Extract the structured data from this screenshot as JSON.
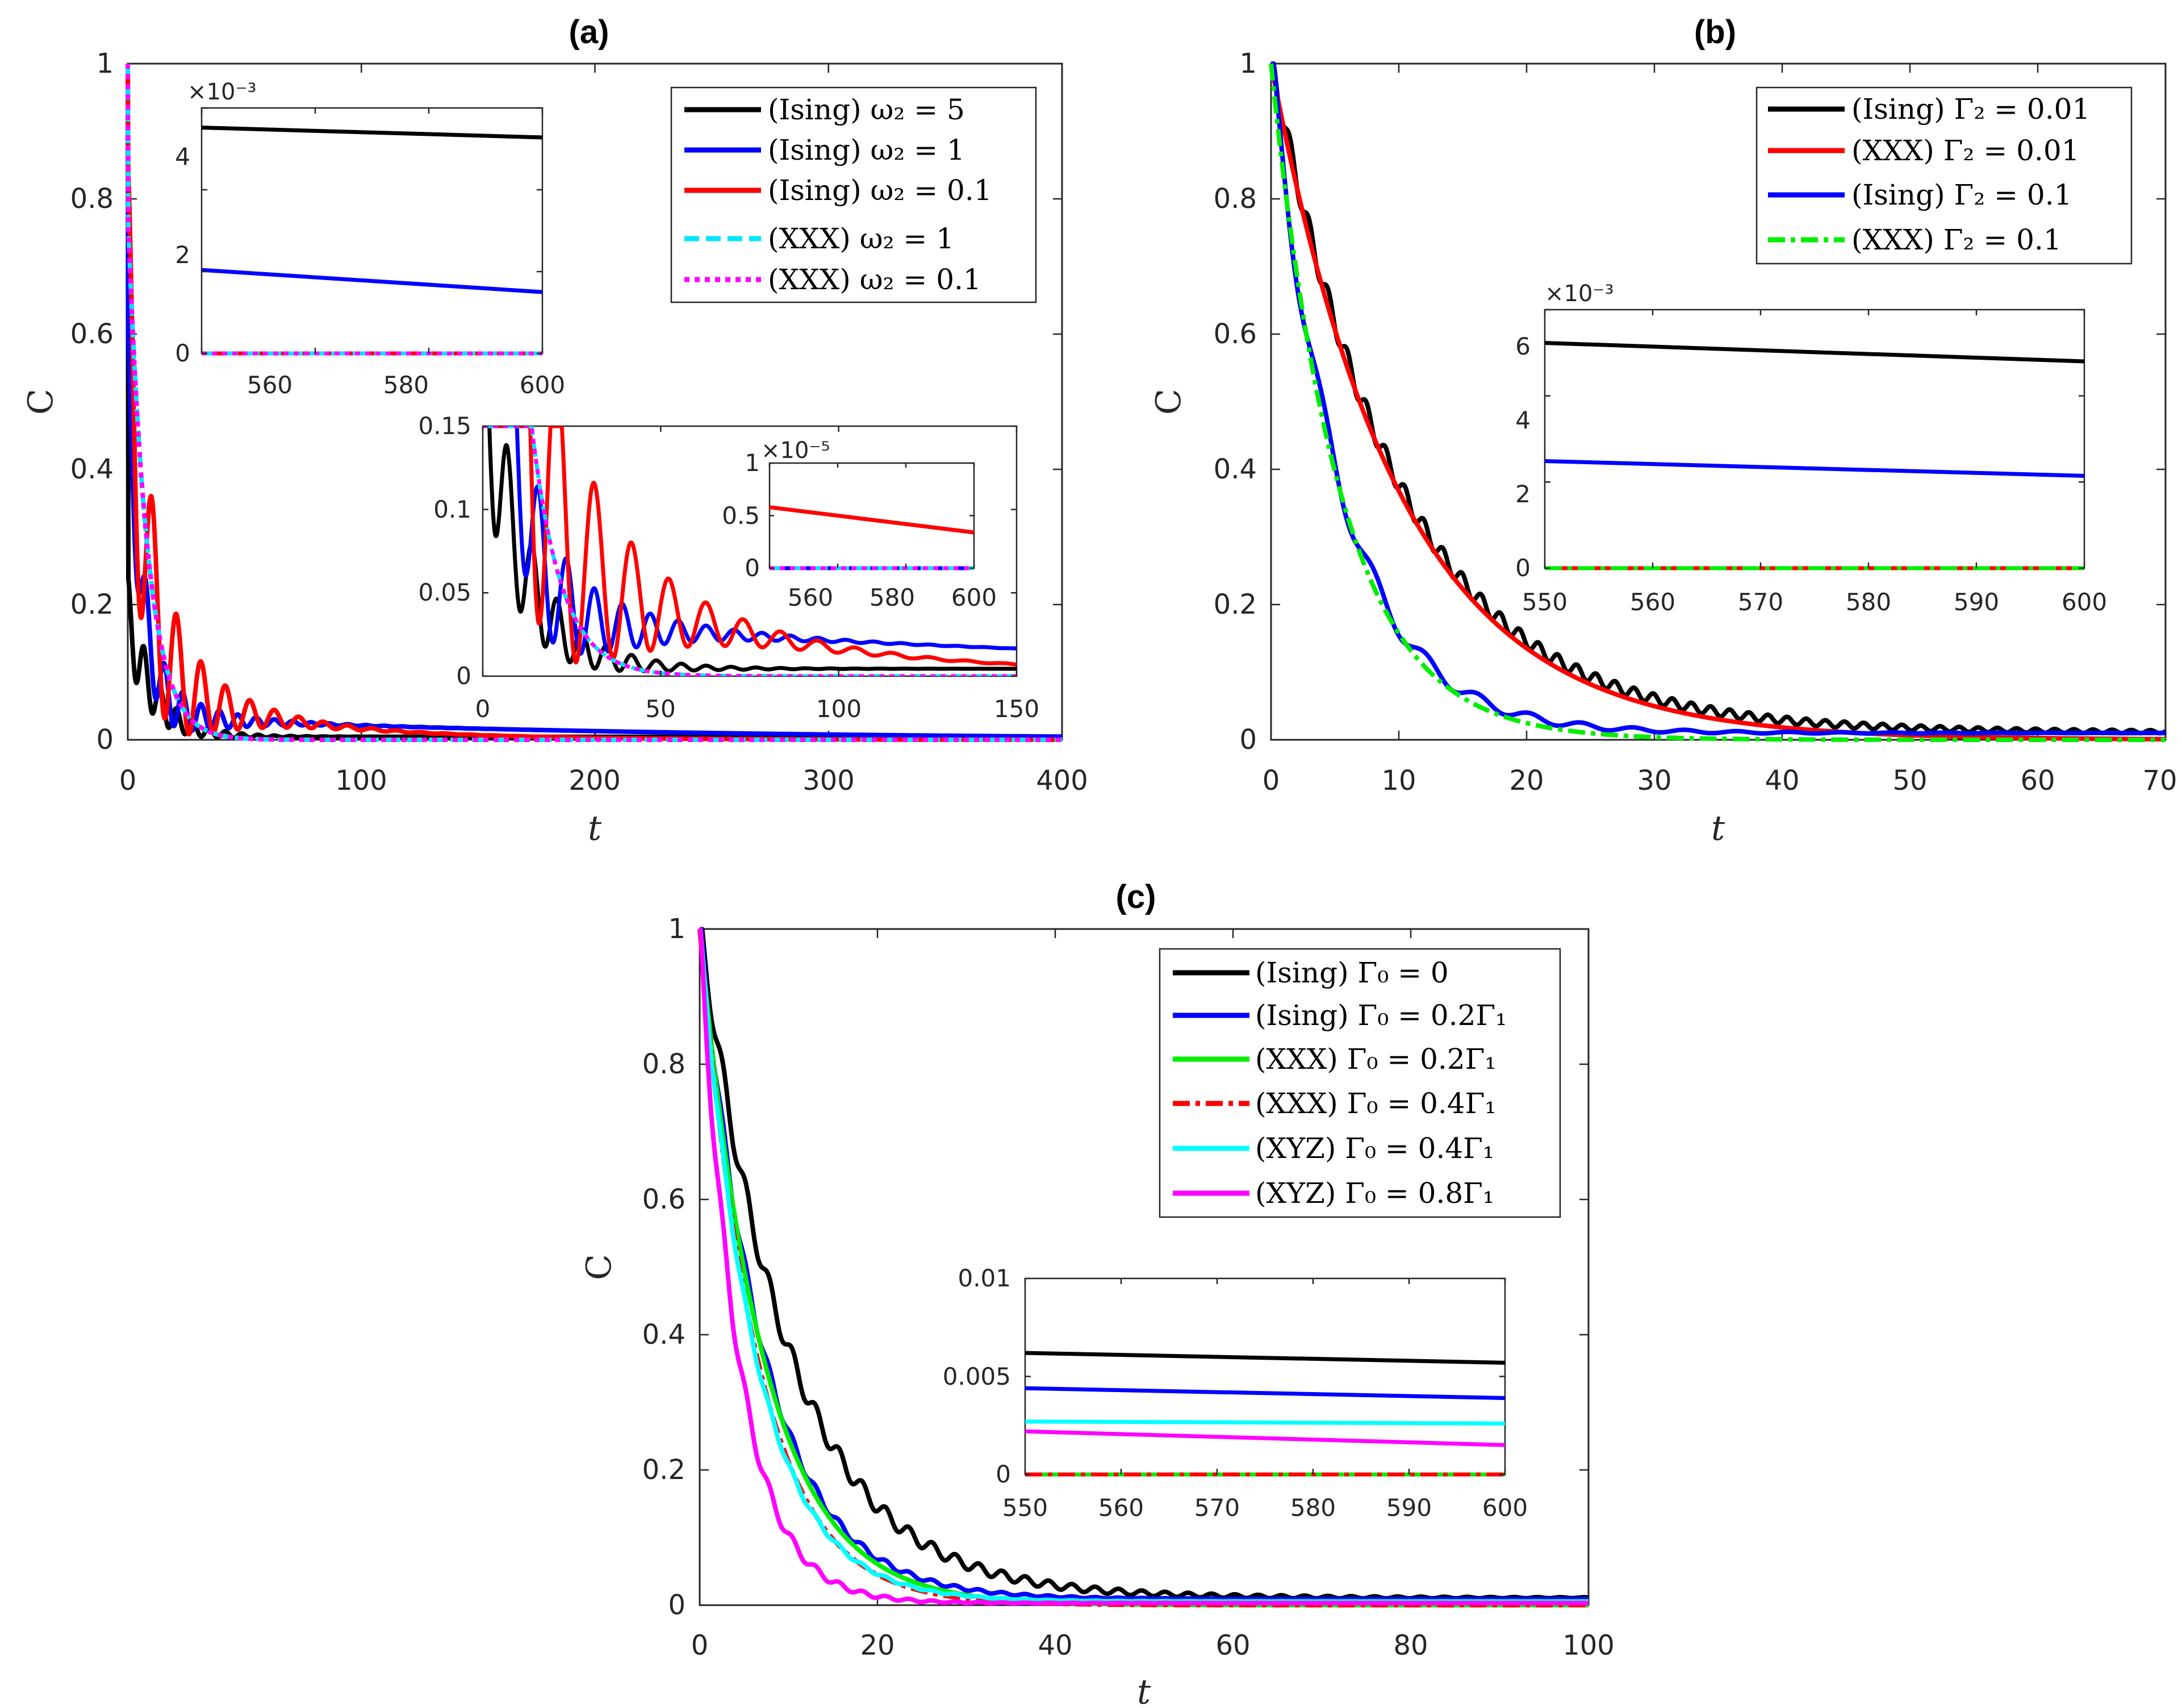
{
  "chart_data": [
    {
      "panel": "(a)",
      "type": "line",
      "title": "(a)",
      "xlabel": "t",
      "ylabel": "C",
      "xlim": [
        0,
        400
      ],
      "ylim": [
        0,
        1
      ],
      "xticks": [
        "0",
        "100",
        "200",
        "300",
        "400"
      ],
      "yticks": [
        "0",
        "0.2",
        "0.4",
        "0.6",
        "0.8",
        "1"
      ],
      "legend": "top-right",
      "series": [
        {
          "name": "(Ising) ω₂ = 5",
          "color": "#000000",
          "style": "solid",
          "amp": 0.18,
          "rate": 0.095,
          "floor": 0.0045,
          "floor_decay": 0.0001,
          "osc": 0.06,
          "omega": 0.9,
          "osc_decay": 0.06
        },
        {
          "name": "(Ising) ω₂ = 1",
          "color": "#0000ff",
          "style": "solid",
          "amp": 0.5,
          "rate": 0.16,
          "floor": 0.035,
          "floor_decay": 0.005,
          "osc": 0.08,
          "omega": 0.8,
          "osc_decay": 0.045
        },
        {
          "name": "(Ising) ω₂ = 0.1",
          "color": "#ff0000",
          "style": "solid",
          "amp": 0.55,
          "rate": 0.13,
          "floor": 0.09,
          "floor_decay": 0.017,
          "osc": 0.22,
          "omega": 0.6,
          "osc_decay": 0.045
        },
        {
          "name": "(XXX) ω₂ = 1",
          "color": "#00e5ff",
          "style": "dashed",
          "amp": 0.78,
          "rate": 0.12,
          "floor": 0.0,
          "floor_decay": 0.0,
          "osc": 0.0,
          "omega": 0.0,
          "osc_decay": 0.1
        },
        {
          "name": "(XXX) ω₂ = 0.1",
          "color": "#ff00ff",
          "style": "dotted",
          "amp": 0.78,
          "rate": 0.12,
          "floor": 0.0,
          "floor_decay": 0.0,
          "osc": 0.0,
          "omega": 0.0,
          "osc_decay": 0.1
        }
      ],
      "insets": [
        {
          "name": "inset-a1",
          "xlim": [
            550,
            600
          ],
          "ylim": [
            0,
            0.005
          ],
          "xticks": [
            "560",
            "580",
            "600"
          ],
          "yticks": [
            "0",
            "2",
            "4"
          ],
          "exponent": "×10⁻³",
          "series": [
            {
              "color": "#000000",
              "style": "solid",
              "y0": 0.0046,
              "y1": 0.0044
            },
            {
              "color": "#0000ff",
              "style": "solid",
              "y0": 0.0017,
              "y1": 0.00125
            },
            {
              "color": "#ff0000",
              "style": "solid",
              "y0": 0.0,
              "y1": 0.0
            },
            {
              "color": "#00e5ff",
              "style": "dashed",
              "y0": 0.0,
              "y1": 0.0
            },
            {
              "color": "#ff00ff",
              "style": "dotted",
              "y0": 0.0,
              "y1": 0.0
            }
          ]
        },
        {
          "name": "inset-a2",
          "xlim": [
            0,
            150
          ],
          "ylim": [
            0,
            0.15
          ],
          "xticks": [
            "0",
            "50",
            "100",
            "150"
          ],
          "yticks": [
            "0",
            "0.05",
            "0.1",
            "0.15"
          ]
        },
        {
          "name": "inset-a3",
          "xlim": [
            550,
            600
          ],
          "ylim": [
            0,
            1e-05
          ],
          "xticks": [
            "560",
            "580",
            "600"
          ],
          "yticks": [
            "0",
            "0.5",
            "1"
          ],
          "exponent": "×10⁻⁵",
          "series": [
            {
              "color": "#ff0000",
              "style": "solid",
              "y0": 5.8e-06,
              "y1": 3.4e-06
            },
            {
              "color": "#0000ff",
              "style": "solid",
              "y0": 0.0,
              "y1": 0.0
            },
            {
              "color": "#00e5ff",
              "style": "dashed",
              "y0": 0.0,
              "y1": 0.0
            },
            {
              "color": "#ff00ff",
              "style": "dotted",
              "y0": 0.0,
              "y1": 0.0
            }
          ]
        }
      ]
    },
    {
      "panel": "(b)",
      "type": "line",
      "title": "(b)",
      "xlabel": "t",
      "ylabel": "C",
      "xlim": [
        0,
        70
      ],
      "ylim": [
        0,
        1
      ],
      "xticks": [
        "0",
        "10",
        "20",
        "30",
        "40",
        "50",
        "60",
        "70"
      ],
      "yticks": [
        "0",
        "0.2",
        "0.4",
        "0.6",
        "0.8",
        "1"
      ],
      "legend": "top-right",
      "series": [
        {
          "name": "(Ising) Γ₂ = 0.01",
          "color": "#000000",
          "style": "solid",
          "amp": 1.0,
          "rate": 0.1,
          "floor": 0.011,
          "floor_decay": 0.0,
          "osc": 0.018,
          "omega": 4.2,
          "osc_decay": 0.03
        },
        {
          "name": "(XXX) Γ₂ = 0.01",
          "color": "#ff0000",
          "style": "solid",
          "amp": 1.0,
          "rate": 0.1,
          "floor": 0.0,
          "floor_decay": 0.0,
          "osc": 0.0,
          "omega": 0.0,
          "osc_decay": 0.1
        },
        {
          "name": "(Ising) Γ₂ = 0.1",
          "color": "#0000ff",
          "style": "solid",
          "amp": 1.0,
          "rate": 0.185,
          "floor": 0.01,
          "floor_decay": 0.0,
          "osc": 0.03,
          "omega": 1.55,
          "osc_decay": 0.08
        },
        {
          "name": "(XXX) Γ₂ = 0.1",
          "color": "#00ee00",
          "style": "dashdot",
          "amp": 1.0,
          "rate": 0.185,
          "floor": 0.0,
          "floor_decay": 0.0,
          "osc": 0.0,
          "omega": 0.0,
          "osc_decay": 0.1
        }
      ],
      "insets": [
        {
          "name": "inset-b",
          "xlim": [
            550,
            600
          ],
          "ylim": [
            0,
            0.007
          ],
          "xticks": [
            "550",
            "560",
            "570",
            "580",
            "590",
            "600"
          ],
          "yticks": [
            "0",
            "2",
            "4",
            "6"
          ],
          "exponent": "×10⁻³",
          "series": [
            {
              "color": "#000000",
              "style": "solid",
              "y0": 0.0061,
              "y1": 0.0056
            },
            {
              "color": "#0000ff",
              "style": "solid",
              "y0": 0.0029,
              "y1": 0.0025
            },
            {
              "color": "#ff0000",
              "style": "solid",
              "y0": 0.0,
              "y1": 0.0
            },
            {
              "color": "#00ee00",
              "style": "dashdot",
              "y0": 0.0,
              "y1": 0.0
            }
          ]
        }
      ]
    },
    {
      "panel": "(c)",
      "type": "line",
      "title": "(c)",
      "xlabel": "t",
      "ylabel": "C",
      "xlim": [
        0,
        100
      ],
      "ylim": [
        0,
        1
      ],
      "xticks": [
        "0",
        "20",
        "40",
        "60",
        "80",
        "100"
      ],
      "yticks": [
        "0",
        "0.2",
        "0.4",
        "0.6",
        "0.8",
        "1"
      ],
      "legend": "top-right",
      "series": [
        {
          "name": "(Ising) Γ₀ = 0",
          "color": "#000000",
          "style": "solid",
          "amp": 1.0,
          "rate": 0.1,
          "floor": 0.011,
          "floor_decay": 0.0,
          "osc": 0.022,
          "omega": 2.4,
          "osc_decay": 0.035
        },
        {
          "name": "(Ising) Γ₀ = 0.2Γ₁",
          "color": "#0000ff",
          "style": "solid",
          "amp": 1.0,
          "rate": 0.14,
          "floor": 0.009,
          "floor_decay": 0.0,
          "osc": 0.014,
          "omega": 2.4,
          "osc_decay": 0.06
        },
        {
          "name": "(XXX) Γ₀ = 0.2Γ₁",
          "color": "#00ee00",
          "style": "solid",
          "amp": 1.0,
          "rate": 0.14,
          "floor": 0.0,
          "floor_decay": 0.0,
          "osc": 0.0,
          "omega": 0.0,
          "osc_decay": 0.1
        },
        {
          "name": "(XXX) Γ₀ = 0.4Γ₁",
          "color": "#ff0000",
          "style": "dashdot",
          "amp": 1.0,
          "rate": 0.155,
          "floor": 0.0,
          "floor_decay": 0.0,
          "osc": 0.0,
          "omega": 0.0,
          "osc_decay": 0.1
        },
        {
          "name": "(XYZ) Γ₀ = 0.4Γ₁",
          "color": "#00ffff",
          "style": "solid",
          "amp": 1.0,
          "rate": 0.16,
          "floor": 0.0055,
          "floor_decay": 0.0,
          "osc": 0.008,
          "omega": 2.4,
          "osc_decay": 0.07
        },
        {
          "name": "(XYZ) Γ₀ = 0.8Γ₁",
          "color": "#ff00ff",
          "style": "solid",
          "amp": 1.0,
          "rate": 0.23,
          "floor": 0.003,
          "floor_decay": 0.0,
          "osc": 0.02,
          "omega": 2.4,
          "osc_decay": 0.1
        }
      ],
      "insets": [
        {
          "name": "inset-c",
          "xlim": [
            550,
            600
          ],
          "ylim": [
            0,
            0.01
          ],
          "xticks": [
            "550",
            "560",
            "570",
            "580",
            "590",
            "600"
          ],
          "yticks": [
            "0",
            "0.005",
            "0.01"
          ],
          "series": [
            {
              "color": "#000000",
              "style": "solid",
              "y0": 0.0062,
              "y1": 0.0057
            },
            {
              "color": "#0000ff",
              "style": "solid",
              "y0": 0.0044,
              "y1": 0.0039
            },
            {
              "color": "#00ffff",
              "style": "solid",
              "y0": 0.0027,
              "y1": 0.0026
            },
            {
              "color": "#ff00ff",
              "style": "solid",
              "y0": 0.0022,
              "y1": 0.0015
            },
            {
              "color": "#00ee00",
              "style": "solid",
              "y0": 0.0,
              "y1": 0.0
            },
            {
              "color": "#ff0000",
              "style": "dashdot",
              "y0": 0.0,
              "y1": 0.0
            }
          ]
        }
      ]
    }
  ]
}
